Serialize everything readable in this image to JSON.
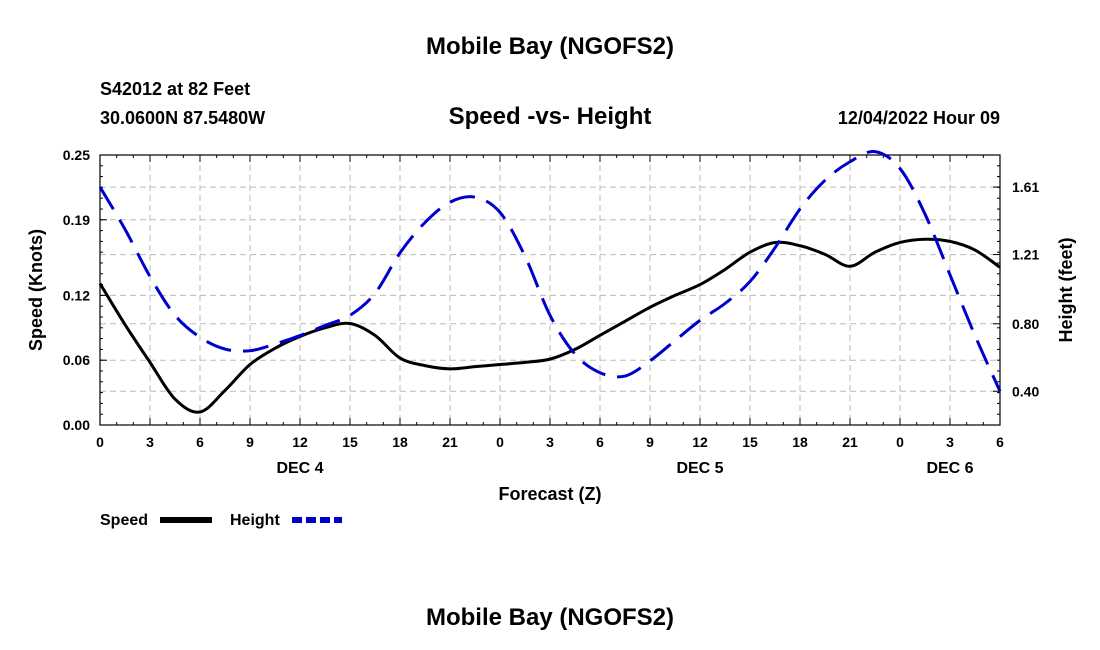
{
  "header": {
    "title": "Mobile Bay (NGOFS2)",
    "station": "S42012 at 82 Feet",
    "coords": "30.0600N  87.5480W",
    "chart_title": "Speed -vs- Height",
    "datetime": "12/04/2022 Hour 09"
  },
  "footer": {
    "title": "Mobile Bay (NGOFS2)"
  },
  "colors": {
    "speed": "#000000",
    "height": "#0000cc",
    "grid": "#bbbbbb"
  },
  "chart_data": {
    "type": "line",
    "title": "Speed -vs- Height",
    "xlabel": "Forecast (Z)",
    "ylabel": "Speed (Knots)",
    "y2label": "Height (feet)",
    "xlim": [
      0,
      54
    ],
    "ylim": [
      0,
      0.25
    ],
    "y2lim": [
      0.2,
      1.8
    ],
    "x_ticks": [
      0,
      3,
      6,
      9,
      12,
      15,
      18,
      21,
      24,
      27,
      30,
      33,
      36,
      39,
      42,
      45,
      48,
      51,
      54
    ],
    "x_tick_labels": [
      "0",
      "3",
      "6",
      "9",
      "12",
      "15",
      "18",
      "21",
      "0",
      "3",
      "6",
      "9",
      "12",
      "15",
      "18",
      "21",
      "0",
      "3",
      "6"
    ],
    "day_labels": [
      {
        "x": 12,
        "label": "DEC 4"
      },
      {
        "x": 36,
        "label": "DEC 5"
      },
      {
        "x": 51,
        "label": "DEC 6"
      }
    ],
    "y_ticks": [
      0.0,
      0.06,
      0.12,
      0.19,
      0.25
    ],
    "y_tick_labels": [
      "0.00",
      "0.06",
      "0.12",
      "0.19",
      "0.25"
    ],
    "y2_ticks": [
      0.4,
      0.8,
      1.21,
      1.61
    ],
    "y2_tick_labels": [
      "0.40",
      "0.80",
      "1.21",
      "1.61"
    ],
    "grid": true,
    "series": [
      {
        "name": "Speed",
        "axis": "left",
        "style": "solid",
        "x": [
          0,
          1.5,
          3,
          4.5,
          6,
          7.5,
          9,
          10.5,
          12,
          13.5,
          15,
          16.5,
          18,
          19.5,
          21,
          22.5,
          24,
          25.5,
          27,
          28.5,
          30,
          31.5,
          33,
          34.5,
          36,
          37.5,
          39,
          40.5,
          42,
          43.5,
          45,
          46.5,
          48,
          49.5,
          51,
          52.5,
          54
        ],
        "values": [
          0.131,
          0.093,
          0.058,
          0.024,
          0.012,
          0.032,
          0.056,
          0.071,
          0.082,
          0.09,
          0.094,
          0.083,
          0.062,
          0.055,
          0.052,
          0.054,
          0.056,
          0.058,
          0.061,
          0.07,
          0.083,
          0.096,
          0.109,
          0.12,
          0.13,
          0.144,
          0.16,
          0.169,
          0.166,
          0.158,
          0.147,
          0.16,
          0.169,
          0.172,
          0.17,
          0.162,
          0.146
        ]
      },
      {
        "name": "Height",
        "axis": "right",
        "style": "dashed",
        "x": [
          0,
          1.5,
          3,
          4.5,
          6,
          7.5,
          9,
          10.5,
          12,
          13.5,
          15,
          16.5,
          18,
          19.5,
          21,
          22.5,
          24,
          25.5,
          27,
          28.5,
          30,
          31.5,
          33,
          34.5,
          36,
          37.5,
          39,
          40.5,
          42,
          43.5,
          45,
          46.5,
          48,
          49.5,
          51,
          52.5,
          54
        ],
        "values": [
          1.61,
          1.36,
          1.08,
          0.85,
          0.72,
          0.65,
          0.64,
          0.68,
          0.73,
          0.79,
          0.85,
          0.98,
          1.22,
          1.4,
          1.52,
          1.55,
          1.46,
          1.2,
          0.85,
          0.62,
          0.51,
          0.49,
          0.58,
          0.7,
          0.82,
          0.92,
          1.05,
          1.25,
          1.48,
          1.65,
          1.76,
          1.82,
          1.72,
          1.45,
          1.09,
          0.73,
          0.4
        ]
      }
    ],
    "legend": [
      {
        "label": "Speed",
        "series": "Speed"
      },
      {
        "label": "Height",
        "series": "Height"
      }
    ],
    "legend_position": "bottom-left"
  }
}
